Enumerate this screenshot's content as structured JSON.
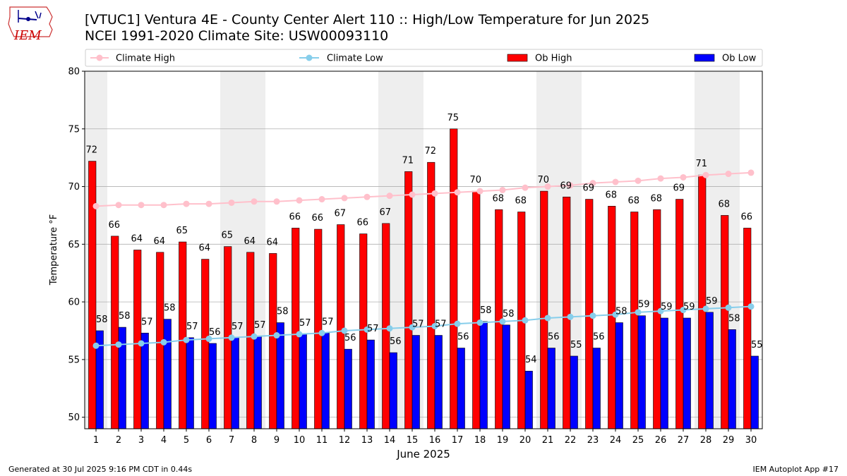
{
  "header": {
    "title_line1": "[VTUC1] Ventura 4E - County Center Alert 110 :: High/Low Temperature for Jun 2025",
    "title_line2": "NCEI 1991-2020 Climate Site: USW00093110",
    "logo_text": "IEM"
  },
  "footer": {
    "generated": "Generated at 30 Jul 2025 9:16 PM CDT in 0.44s",
    "app": "IEM Autoplot App #17"
  },
  "colors": {
    "ob_high": "#ff0000",
    "ob_low": "#0000ff",
    "climate_high": "#ffc0cb",
    "climate_low": "#87ceeb",
    "weekend_shade": "#eeeeee",
    "grid": "#b0b0b0"
  },
  "chart_data": {
    "type": "bar",
    "title": "[VTUC1] Ventura 4E - County Center Alert 110 :: High/Low Temperature for Jun 2025",
    "xlabel": "June 2025",
    "ylabel": "Temperature °F",
    "ylim": [
      49,
      80
    ],
    "yticks": [
      50,
      55,
      60,
      65,
      70,
      75,
      80
    ],
    "grid": "horizontal",
    "legend_position": "top",
    "categories": [
      "1",
      "2",
      "3",
      "4",
      "5",
      "6",
      "7",
      "8",
      "9",
      "10",
      "11",
      "12",
      "13",
      "14",
      "15",
      "16",
      "17",
      "18",
      "19",
      "20",
      "21",
      "22",
      "23",
      "24",
      "25",
      "26",
      "27",
      "28",
      "29",
      "30"
    ],
    "shaded_days": [
      1,
      7,
      8,
      14,
      15,
      21,
      22,
      28,
      29
    ],
    "series": [
      {
        "name": "Ob High",
        "kind": "bar",
        "values": [
          72.2,
          65.7,
          64.5,
          64.3,
          65.2,
          63.7,
          64.8,
          64.3,
          64.2,
          66.4,
          66.3,
          66.7,
          65.9,
          66.8,
          71.3,
          72.1,
          75.0,
          69.6,
          68.0,
          67.8,
          69.6,
          69.1,
          68.9,
          68.3,
          67.8,
          68.0,
          68.9,
          71.0,
          67.5,
          66.4
        ],
        "labels": [
          "72",
          "66",
          "64",
          "64",
          "65",
          "64",
          "65",
          "64",
          "64",
          "66",
          "66",
          "67",
          "66",
          "67",
          "71",
          "72",
          "75",
          "70",
          "68",
          "68",
          "70",
          "69",
          "69",
          "68",
          "68",
          "68",
          "69",
          "71",
          "68",
          "66"
        ]
      },
      {
        "name": "Ob Low",
        "kind": "bar",
        "values": [
          57.5,
          57.8,
          57.3,
          58.5,
          56.9,
          56.4,
          56.9,
          57.0,
          58.2,
          57.2,
          57.3,
          55.9,
          56.7,
          55.6,
          57.1,
          57.1,
          56.0,
          58.3,
          58.0,
          54.0,
          56.0,
          55.3,
          56.0,
          58.2,
          58.8,
          58.6,
          58.6,
          59.1,
          57.6,
          55.3
        ],
        "labels": [
          "58",
          "58",
          "57",
          "58",
          "57",
          "56",
          "57",
          "57",
          "58",
          "57",
          "57",
          "56",
          "57",
          "56",
          "57",
          "57",
          "56",
          "58",
          "58",
          "54",
          "56",
          "55",
          "56",
          "58",
          "59",
          "59",
          "59",
          "59",
          "58",
          "55"
        ]
      },
      {
        "name": "Climate High",
        "kind": "line",
        "values": [
          68.3,
          68.4,
          68.4,
          68.4,
          68.5,
          68.5,
          68.6,
          68.7,
          68.7,
          68.8,
          68.9,
          69.0,
          69.1,
          69.2,
          69.3,
          69.4,
          69.5,
          69.6,
          69.7,
          69.9,
          70.0,
          70.1,
          70.3,
          70.4,
          70.5,
          70.7,
          70.8,
          71.0,
          71.1,
          71.2
        ]
      },
      {
        "name": "Climate Low",
        "kind": "line",
        "values": [
          56.2,
          56.3,
          56.4,
          56.5,
          56.7,
          56.8,
          56.9,
          57.0,
          57.1,
          57.2,
          57.3,
          57.5,
          57.6,
          57.7,
          57.8,
          57.9,
          58.1,
          58.2,
          58.3,
          58.4,
          58.6,
          58.7,
          58.8,
          58.9,
          59.1,
          59.2,
          59.3,
          59.4,
          59.5,
          59.6
        ]
      }
    ],
    "legend": [
      "Climate High",
      "Climate Low",
      "Ob High",
      "Ob Low"
    ]
  }
}
